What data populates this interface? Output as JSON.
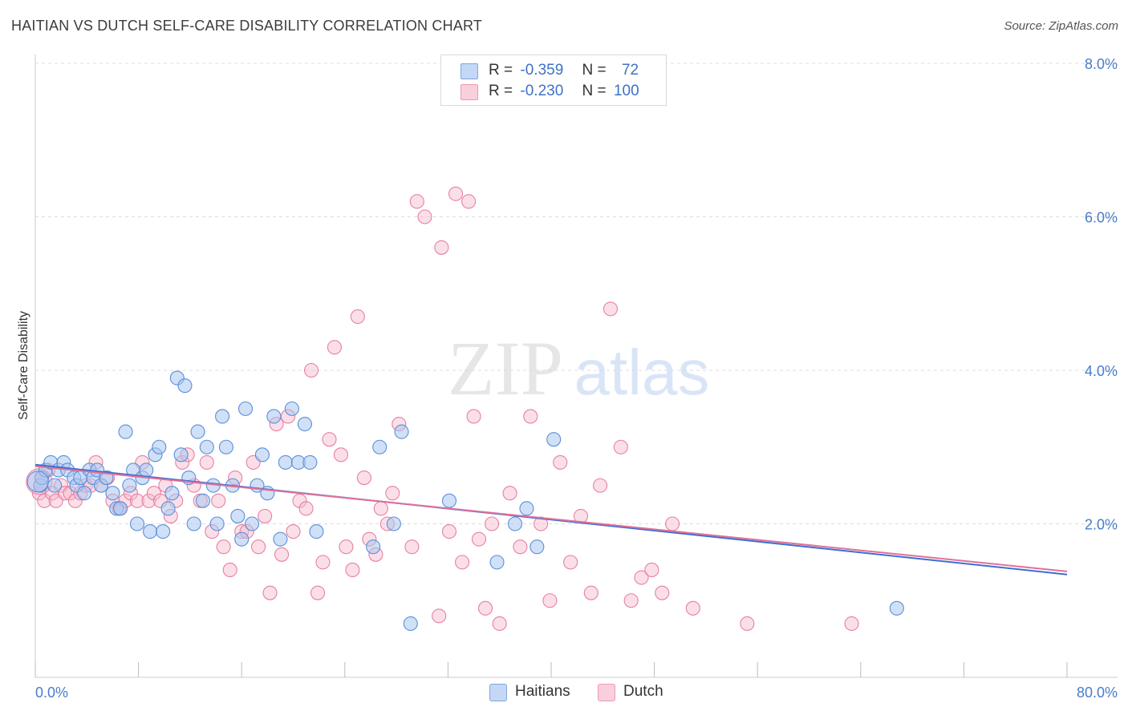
{
  "header": {
    "title": "HAITIAN VS DUTCH SELF-CARE DISABILITY CORRELATION CHART",
    "source": "Source: ZipAtlas.com"
  },
  "watermark": {
    "zip": "ZIP",
    "atlas": "atlas"
  },
  "legend": {
    "r_label": "R =",
    "n_label": "N =",
    "rows": [
      {
        "r": "-0.359",
        "n": "72"
      },
      {
        "r": "-0.230",
        "n": "100"
      }
    ]
  },
  "bottom_legend": {
    "haitians": "Haitians",
    "dutch": "Dutch"
  },
  "colors": {
    "blue_fill": "#a9c6ee",
    "blue_stroke": "#5b8fdb",
    "blue_line": "#3b6fd1",
    "pink_fill": "#f7b9cc",
    "pink_stroke": "#e8809f",
    "pink_line": "#e0709a",
    "tick_text": "#4a7cc9"
  },
  "chart_data": {
    "type": "scatter",
    "title": "HAITIAN VS DUTCH SELF-CARE DISABILITY CORRELATION CHART",
    "xlabel": "",
    "ylabel": "Self-Care Disability",
    "xlim": [
      0,
      80
    ],
    "ylim": [
      0,
      8.0
    ],
    "x_tick_labels": [
      "0.0%",
      "80.0%"
    ],
    "y_ticks": [
      2.0,
      4.0,
      6.0,
      8.0
    ],
    "y_tick_labels": [
      "2.0%",
      "4.0%",
      "6.0%",
      "8.0%"
    ],
    "grid": true,
    "series": [
      {
        "name": "Haitians",
        "r": -0.359,
        "n": 72,
        "trend": {
          "x": [
            0,
            80
          ],
          "y": [
            2.77,
            1.34
          ]
        },
        "points": [
          [
            0.4,
            2.5
          ],
          [
            0.5,
            2.6
          ],
          [
            0.8,
            2.7
          ],
          [
            1.2,
            2.8
          ],
          [
            1.5,
            2.5
          ],
          [
            1.8,
            2.7
          ],
          [
            2.2,
            2.8
          ],
          [
            2.5,
            2.7
          ],
          [
            3.0,
            2.6
          ],
          [
            3.2,
            2.5
          ],
          [
            3.5,
            2.6
          ],
          [
            3.8,
            2.4
          ],
          [
            4.2,
            2.7
          ],
          [
            4.5,
            2.6
          ],
          [
            4.8,
            2.7
          ],
          [
            5.1,
            2.5
          ],
          [
            5.5,
            2.6
          ],
          [
            6.0,
            2.4
          ],
          [
            6.3,
            2.2
          ],
          [
            6.6,
            2.2
          ],
          [
            7.0,
            3.2
          ],
          [
            7.3,
            2.5
          ],
          [
            7.6,
            2.7
          ],
          [
            7.9,
            2.0
          ],
          [
            8.3,
            2.6
          ],
          [
            8.6,
            2.7
          ],
          [
            8.9,
            1.9
          ],
          [
            9.3,
            2.9
          ],
          [
            9.6,
            3.0
          ],
          [
            9.9,
            1.9
          ],
          [
            10.3,
            2.2
          ],
          [
            10.6,
            2.4
          ],
          [
            11.0,
            3.9
          ],
          [
            11.3,
            2.9
          ],
          [
            11.6,
            3.8
          ],
          [
            11.9,
            2.6
          ],
          [
            12.3,
            2.0
          ],
          [
            12.6,
            3.2
          ],
          [
            13.0,
            2.3
          ],
          [
            13.3,
            3.0
          ],
          [
            13.8,
            2.5
          ],
          [
            14.1,
            2.0
          ],
          [
            14.5,
            3.4
          ],
          [
            14.8,
            3.0
          ],
          [
            15.3,
            2.5
          ],
          [
            15.7,
            2.1
          ],
          [
            16.0,
            1.8
          ],
          [
            16.3,
            3.5
          ],
          [
            16.8,
            2.0
          ],
          [
            17.2,
            2.5
          ],
          [
            17.6,
            2.9
          ],
          [
            18.0,
            2.4
          ],
          [
            18.5,
            3.4
          ],
          [
            19.0,
            1.8
          ],
          [
            19.4,
            2.8
          ],
          [
            19.9,
            3.5
          ],
          [
            20.4,
            2.8
          ],
          [
            20.9,
            3.3
          ],
          [
            21.3,
            2.8
          ],
          [
            21.8,
            1.9
          ],
          [
            26.2,
            1.7
          ],
          [
            26.7,
            3.0
          ],
          [
            27.8,
            2.0
          ],
          [
            28.4,
            3.2
          ],
          [
            29.1,
            0.7
          ],
          [
            32.1,
            2.3
          ],
          [
            35.8,
            1.5
          ],
          [
            37.2,
            2.0
          ],
          [
            38.1,
            2.2
          ],
          [
            38.9,
            1.7
          ],
          [
            40.2,
            3.1
          ],
          [
            66.8,
            0.9
          ]
        ]
      },
      {
        "name": "Dutch",
        "r": -0.23,
        "n": 100,
        "trend": {
          "x": [
            0,
            80
          ],
          "y": [
            2.75,
            1.38
          ]
        },
        "points": [
          [
            0.3,
            2.4
          ],
          [
            0.5,
            2.6
          ],
          [
            0.7,
            2.3
          ],
          [
            1.0,
            2.7
          ],
          [
            1.3,
            2.4
          ],
          [
            1.6,
            2.3
          ],
          [
            2.0,
            2.5
          ],
          [
            2.3,
            2.4
          ],
          [
            2.7,
            2.4
          ],
          [
            3.1,
            2.3
          ],
          [
            3.5,
            2.4
          ],
          [
            3.9,
            2.5
          ],
          [
            4.3,
            2.5
          ],
          [
            4.7,
            2.8
          ],
          [
            5.1,
            2.5
          ],
          [
            5.6,
            2.6
          ],
          [
            6.0,
            2.3
          ],
          [
            6.5,
            2.2
          ],
          [
            7.0,
            2.3
          ],
          [
            7.4,
            2.4
          ],
          [
            7.9,
            2.3
          ],
          [
            8.3,
            2.8
          ],
          [
            8.8,
            2.3
          ],
          [
            9.2,
            2.4
          ],
          [
            9.7,
            2.3
          ],
          [
            10.1,
            2.5
          ],
          [
            10.5,
            2.1
          ],
          [
            10.9,
            2.3
          ],
          [
            11.4,
            2.8
          ],
          [
            11.8,
            2.9
          ],
          [
            12.3,
            2.5
          ],
          [
            12.8,
            2.3
          ],
          [
            13.3,
            2.8
          ],
          [
            13.7,
            1.9
          ],
          [
            14.2,
            2.3
          ],
          [
            14.6,
            1.7
          ],
          [
            15.1,
            1.4
          ],
          [
            15.5,
            2.6
          ],
          [
            16.0,
            1.9
          ],
          [
            16.4,
            1.9
          ],
          [
            16.9,
            2.8
          ],
          [
            17.3,
            1.7
          ],
          [
            17.8,
            2.1
          ],
          [
            18.2,
            1.1
          ],
          [
            18.7,
            3.3
          ],
          [
            19.1,
            1.6
          ],
          [
            19.6,
            3.4
          ],
          [
            20.0,
            1.9
          ],
          [
            20.5,
            2.3
          ],
          [
            21.0,
            2.2
          ],
          [
            21.4,
            4.0
          ],
          [
            21.9,
            1.1
          ],
          [
            22.3,
            1.5
          ],
          [
            22.8,
            3.1
          ],
          [
            23.2,
            4.3
          ],
          [
            23.7,
            2.9
          ],
          [
            24.1,
            1.7
          ],
          [
            24.6,
            1.4
          ],
          [
            25.0,
            4.7
          ],
          [
            25.5,
            2.6
          ],
          [
            25.9,
            1.8
          ],
          [
            26.4,
            1.6
          ],
          [
            26.8,
            2.2
          ],
          [
            27.3,
            2.0
          ],
          [
            27.7,
            2.4
          ],
          [
            28.2,
            3.3
          ],
          [
            29.2,
            1.7
          ],
          [
            29.6,
            6.2
          ],
          [
            30.2,
            6.0
          ],
          [
            31.3,
            0.8
          ],
          [
            31.5,
            5.6
          ],
          [
            32.1,
            1.9
          ],
          [
            32.6,
            6.3
          ],
          [
            33.1,
            1.5
          ],
          [
            33.6,
            6.2
          ],
          [
            34.0,
            3.4
          ],
          [
            34.4,
            1.8
          ],
          [
            34.9,
            0.9
          ],
          [
            35.4,
            2.0
          ],
          [
            36.0,
            0.7
          ],
          [
            36.8,
            2.4
          ],
          [
            37.6,
            1.7
          ],
          [
            38.4,
            3.4
          ],
          [
            39.2,
            2.0
          ],
          [
            39.9,
            1.0
          ],
          [
            40.7,
            2.8
          ],
          [
            41.5,
            1.5
          ],
          [
            42.3,
            2.1
          ],
          [
            43.1,
            1.1
          ],
          [
            43.8,
            2.5
          ],
          [
            44.6,
            4.8
          ],
          [
            45.4,
            3.0
          ],
          [
            46.2,
            1.0
          ],
          [
            47.0,
            1.3
          ],
          [
            47.8,
            1.4
          ],
          [
            48.6,
            1.1
          ],
          [
            49.4,
            2.0
          ],
          [
            51.0,
            0.9
          ],
          [
            55.2,
            0.7
          ],
          [
            63.3,
            0.7
          ]
        ]
      }
    ]
  }
}
